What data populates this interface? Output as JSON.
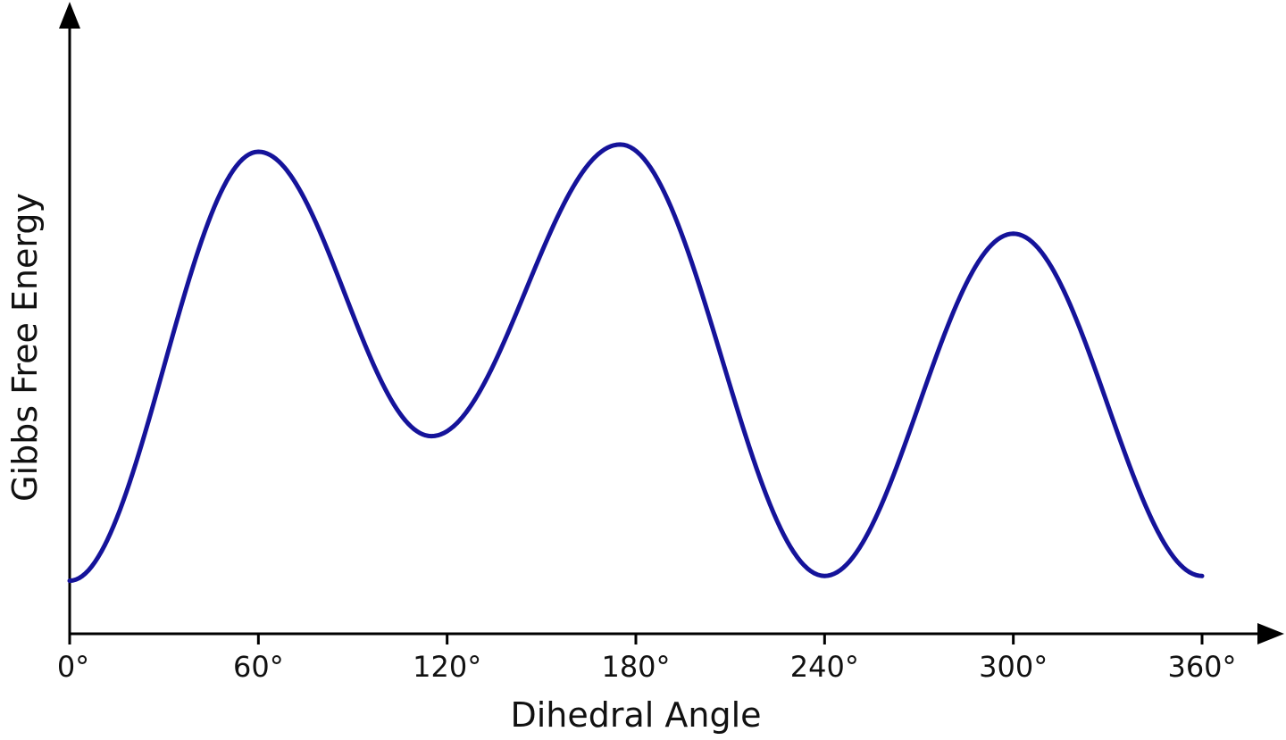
{
  "chart_data": {
    "type": "line",
    "title": "",
    "xlabel": "Dihedral Angle",
    "ylabel": "Gibbs Free Energy",
    "xlim": [
      0,
      360
    ],
    "ylim": [
      0,
      1
    ],
    "x_ticks": [
      0,
      60,
      120,
      180,
      240,
      300,
      360
    ],
    "x_tick_labels": [
      "0°",
      "60°",
      "120°",
      "180°",
      "240°",
      "300°",
      "360°"
    ],
    "y_ticks_shown": false,
    "grid": false,
    "legend": "none",
    "series": [
      {
        "color": "#15139a",
        "points": [
          {
            "x": 0,
            "y": 0.11
          },
          {
            "x": 60,
            "y": 1.0
          },
          {
            "x": 115,
            "y": 0.41
          },
          {
            "x": 175,
            "y": 1.015
          },
          {
            "x": 240,
            "y": 0.12
          },
          {
            "x": 300,
            "y": 0.83
          },
          {
            "x": 360,
            "y": 0.12
          }
        ]
      }
    ]
  }
}
